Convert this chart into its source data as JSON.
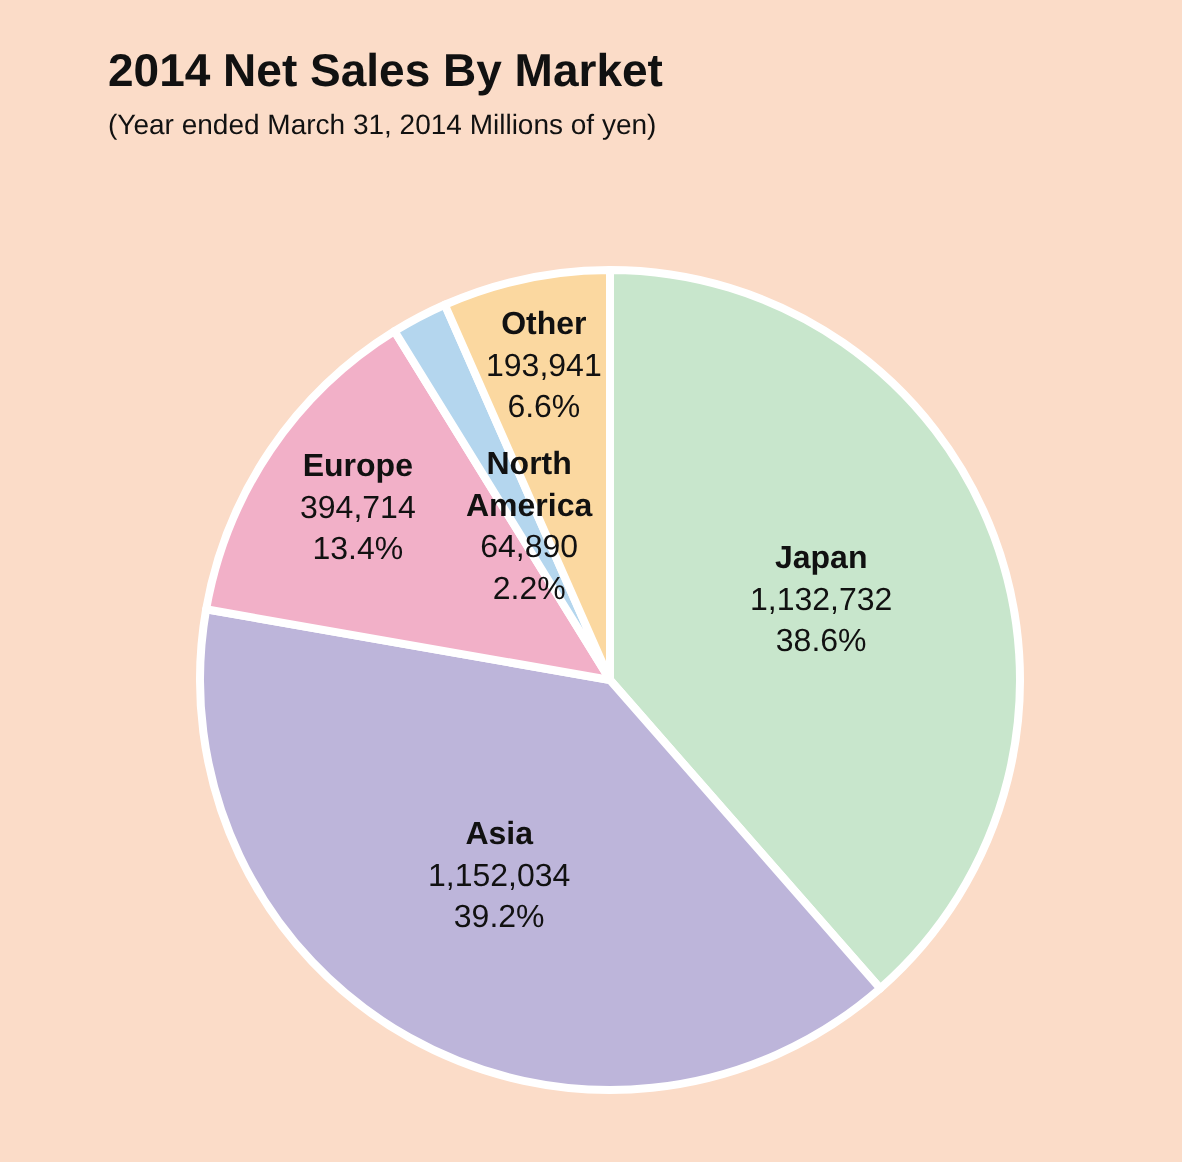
{
  "chart_data": {
    "type": "pie",
    "title": "2014 Net Sales By Market",
    "subtitle": "(Year ended March 31, 2014 Millions of yen)",
    "categories": [
      "Japan",
      "Asia",
      "Europe",
      "North America",
      "Other"
    ],
    "values": [
      1132732,
      1152034,
      394714,
      64890,
      193941
    ],
    "colors": [
      "#c8e6cc",
      "#bdb5da",
      "#f2b0c8",
      "#b4d6ee",
      "#fbd8a0"
    ],
    "value_labels": [
      "1,132,732\n38.6%",
      "1,152,034\n39.2%",
      "394,714\n13.4%",
      "64,890\n2.2%",
      "193,941\n6.6%"
    ],
    "legend": false
  }
}
